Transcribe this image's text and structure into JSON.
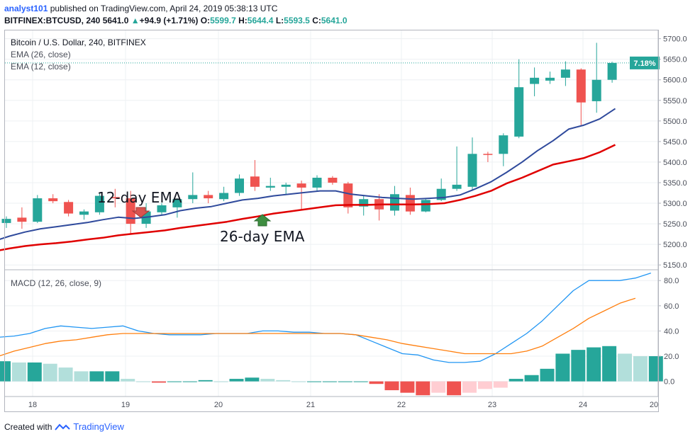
{
  "header": {
    "user": "analyst101",
    "published_text": " published on TradingView.com, April 24, 2019 05:38:13 UTC",
    "symbol": "BITFINEX:BTCUSD, 240",
    "last": "5641.0",
    "change": "+94.9 (+1.71%)",
    "o_label": "O:",
    "o_value": "5599.7",
    "h_label": "H:",
    "h_value": "5644.4",
    "l_label": "L:",
    "l_value": "5593.5",
    "c_label": "C:",
    "c_value": "5641.0"
  },
  "legend": {
    "title": "Bitcoin / U.S. Dollar, 240, BITFINEX",
    "ema26": "EMA (26, close)",
    "ema12": "EMA (12, close)",
    "macd": "MACD (12, 26, close, 9)"
  },
  "annotations": {
    "ema12_label": "12-day EMA",
    "ema26_label": "26-day EMA"
  },
  "price_badge": "7.18%",
  "footer": {
    "created_with": "Created with",
    "brand": "TradingView"
  },
  "colors": {
    "up": "#26a69a",
    "down": "#ef5350",
    "ema12": "#2f4a9c",
    "ema26": "#e00000",
    "macd": "#2196f3",
    "signal": "#ff7f0e"
  },
  "chart_data": {
    "type": "candlestick",
    "x_tick_labels": [
      "18",
      "19",
      "20",
      "21",
      "22",
      "23",
      "24",
      "20"
    ],
    "price_ticks": [
      5150,
      5200,
      5250,
      5300,
      5350,
      5400,
      5450,
      5500,
      5550,
      5600,
      5650,
      5700
    ],
    "price_range": [
      5140,
      5720
    ],
    "candles": [
      {
        "o": 5252,
        "h": 5268,
        "l": 5240,
        "c": 5262
      },
      {
        "o": 5265,
        "h": 5290,
        "l": 5238,
        "c": 5255
      },
      {
        "o": 5255,
        "h": 5320,
        "l": 5252,
        "c": 5312
      },
      {
        "o": 5312,
        "h": 5322,
        "l": 5300,
        "c": 5305
      },
      {
        "o": 5303,
        "h": 5308,
        "l": 5268,
        "c": 5275
      },
      {
        "o": 5272,
        "h": 5285,
        "l": 5260,
        "c": 5280
      },
      {
        "o": 5278,
        "h": 5325,
        "l": 5272,
        "c": 5318
      },
      {
        "o": 5315,
        "h": 5335,
        "l": 5290,
        "c": 5312
      },
      {
        "o": 5312,
        "h": 5330,
        "l": 5225,
        "c": 5250
      },
      {
        "o": 5250,
        "h": 5300,
        "l": 5240,
        "c": 5280
      },
      {
        "o": 5278,
        "h": 5300,
        "l": 5270,
        "c": 5295
      },
      {
        "o": 5290,
        "h": 5312,
        "l": 5265,
        "c": 5310
      },
      {
        "o": 5310,
        "h": 5375,
        "l": 5300,
        "c": 5320
      },
      {
        "o": 5320,
        "h": 5330,
        "l": 5300,
        "c": 5312
      },
      {
        "o": 5310,
        "h": 5340,
        "l": 5305,
        "c": 5325
      },
      {
        "o": 5325,
        "h": 5370,
        "l": 5318,
        "c": 5360
      },
      {
        "o": 5365,
        "h": 5405,
        "l": 5330,
        "c": 5340
      },
      {
        "o": 5338,
        "h": 5362,
        "l": 5330,
        "c": 5342
      },
      {
        "o": 5340,
        "h": 5350,
        "l": 5320,
        "c": 5345
      },
      {
        "o": 5348,
        "h": 5355,
        "l": 5285,
        "c": 5338
      },
      {
        "o": 5338,
        "h": 5368,
        "l": 5330,
        "c": 5362
      },
      {
        "o": 5362,
        "h": 5366,
        "l": 5345,
        "c": 5350
      },
      {
        "o": 5348,
        "h": 5352,
        "l": 5275,
        "c": 5290
      },
      {
        "o": 5292,
        "h": 5318,
        "l": 5270,
        "c": 5310
      },
      {
        "o": 5310,
        "h": 5322,
        "l": 5258,
        "c": 5285
      },
      {
        "o": 5282,
        "h": 5342,
        "l": 5270,
        "c": 5322
      },
      {
        "o": 5320,
        "h": 5338,
        "l": 5272,
        "c": 5280
      },
      {
        "o": 5280,
        "h": 5312,
        "l": 5278,
        "c": 5308
      },
      {
        "o": 5308,
        "h": 5360,
        "l": 5305,
        "c": 5335
      },
      {
        "o": 5335,
        "h": 5438,
        "l": 5330,
        "c": 5345
      },
      {
        "o": 5340,
        "h": 5460,
        "l": 5330,
        "c": 5420
      },
      {
        "o": 5420,
        "h": 5425,
        "l": 5400,
        "c": 5418
      },
      {
        "o": 5420,
        "h": 5470,
        "l": 5390,
        "c": 5465
      },
      {
        "o": 5462,
        "h": 5650,
        "l": 5458,
        "c": 5582
      },
      {
        "o": 5590,
        "h": 5630,
        "l": 5560,
        "c": 5605
      },
      {
        "o": 5598,
        "h": 5620,
        "l": 5590,
        "c": 5605
      },
      {
        "o": 5605,
        "h": 5645,
        "l": 5585,
        "c": 5625
      },
      {
        "o": 5625,
        "h": 5628,
        "l": 5490,
        "c": 5545
      },
      {
        "o": 5548,
        "h": 5690,
        "l": 5520,
        "c": 5600
      },
      {
        "o": 5600,
        "h": 5644,
        "l": 5593,
        "c": 5641
      }
    ],
    "ema12": [
      5208,
      5220,
      5230,
      5238,
      5243,
      5248,
      5253,
      5260,
      5266,
      5263,
      5267,
      5272,
      5282,
      5288,
      5292,
      5300,
      5308,
      5312,
      5318,
      5322,
      5326,
      5330,
      5330,
      5322,
      5318,
      5314,
      5312,
      5310,
      5312,
      5314,
      5320,
      5335,
      5352,
      5375,
      5400,
      5428,
      5452,
      5480,
      5490,
      5505,
      5530
    ],
    "ema26": [
      5183,
      5190,
      5196,
      5200,
      5203,
      5207,
      5212,
      5216,
      5222,
      5226,
      5230,
      5234,
      5240,
      5245,
      5250,
      5255,
      5262,
      5268,
      5275,
      5280,
      5285,
      5290,
      5295,
      5296,
      5296,
      5297,
      5297,
      5297,
      5298,
      5300,
      5308,
      5318,
      5330,
      5348,
      5362,
      5378,
      5394,
      5402,
      5410,
      5424,
      5442
    ],
    "ema_x_start_index": -0.8,
    "macd": {
      "ticks": [
        0,
        20,
        40,
        60,
        80
      ],
      "range": [
        -12,
        88
      ],
      "macd_line": [
        35,
        36,
        38,
        42,
        44,
        43,
        42,
        43,
        44,
        40,
        38,
        37,
        37,
        37,
        38,
        38,
        38,
        40,
        40,
        39,
        39,
        38,
        38,
        37,
        32,
        27,
        22,
        21,
        17,
        15,
        15,
        16,
        22,
        30,
        38,
        48,
        60,
        72,
        80,
        80,
        80,
        82,
        86
      ],
      "signal_line": [
        20,
        24,
        27,
        30,
        32,
        33,
        35,
        37,
        38,
        38,
        38,
        38,
        38,
        38,
        38,
        38,
        38,
        38,
        38,
        38,
        38,
        38,
        38,
        37,
        35,
        33,
        30,
        28,
        26,
        24,
        22,
        22,
        22,
        22,
        24,
        28,
        35,
        42,
        50,
        56,
        62,
        66
      ],
      "histogram": [
        16,
        15,
        15,
        14,
        11,
        8,
        8,
        8,
        2,
        0,
        -1,
        0,
        0,
        1,
        0,
        2,
        3,
        2,
        1,
        0,
        0,
        0,
        0,
        0,
        -2,
        -7,
        -9,
        -11,
        -9,
        -11,
        -9,
        -6,
        -5,
        2,
        5,
        10,
        22,
        25,
        27,
        28,
        22,
        20,
        20
      ]
    }
  }
}
